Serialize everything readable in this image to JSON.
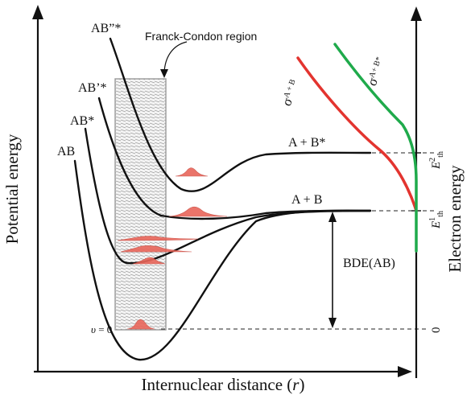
{
  "axes": {
    "x_label_prefix": "Internuclear distance (",
    "x_label_var": "r",
    "x_label_suffix": ")",
    "y_left_label": "Potential energy",
    "y_right_label": "Electron energy"
  },
  "curves": {
    "ab": "AB",
    "ab_star": "AB*",
    "ab_prime_star": "AB’*",
    "ab_double_prime_star": "AB”*"
  },
  "asymptotes": {
    "upper": "A + B*",
    "lower": "A + B"
  },
  "region_label": "Franck-Condon region",
  "bde_label": "BDE(AB)",
  "vib_level": {
    "symbol": "υ",
    "equals": " = 0"
  },
  "cross_sections": {
    "red": {
      "symbol": "σ",
      "sup": "A + B"
    },
    "green": {
      "symbol": "σ",
      "sup": "A+ B*"
    }
  },
  "thresholds": {
    "e2": {
      "symbol": "E",
      "sup": "2",
      "sub": "th"
    },
    "e1": {
      "symbol": "E",
      "sup": "1",
      "sub": "th"
    }
  },
  "zero_label": "0",
  "colors": {
    "red_curve": "#e3342f",
    "green_curve": "#1faa4b",
    "wavepacket": "#e8665a"
  }
}
